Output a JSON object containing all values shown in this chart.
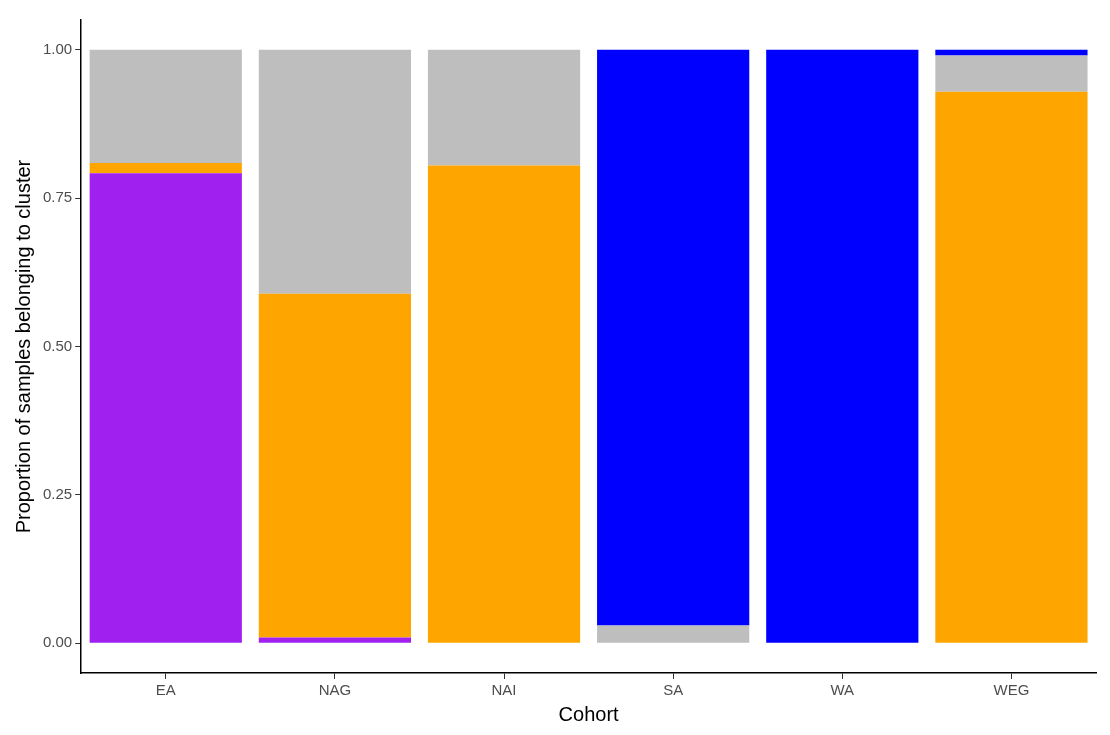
{
  "chart_data": {
    "type": "bar",
    "stacked": true,
    "xlabel": "Cohort",
    "ylabel": "Proportion of samples belonging to cluster",
    "categories": [
      "EA",
      "NAG",
      "NAI",
      "SA",
      "WA",
      "WEG"
    ],
    "series": [
      {
        "color": "#a020f0",
        "values": [
          0.792,
          0.01,
          0,
          0,
          0,
          0
        ]
      },
      {
        "color": "#ffa500",
        "values": [
          0.017,
          0.579,
          0.805,
          0,
          0,
          0.929
        ]
      },
      {
        "color": "#bebebe",
        "values": [
          0.191,
          0.411,
          0.195,
          0.03,
          0,
          0.061
        ]
      },
      {
        "color": "#0000ff",
        "values": [
          0,
          0,
          0,
          0.97,
          1,
          0.01
        ]
      }
    ],
    "ylim": [
      -0.05,
      1.05
    ],
    "yticks": [
      {
        "value": 0,
        "label": "0.00"
      },
      {
        "value": 0.25,
        "label": "0.25"
      },
      {
        "value": 0.5,
        "label": "0.50"
      },
      {
        "value": 0.75,
        "label": "0.75"
      },
      {
        "value": 1,
        "label": "1.00"
      }
    ],
    "grid": false,
    "legend": false
  }
}
